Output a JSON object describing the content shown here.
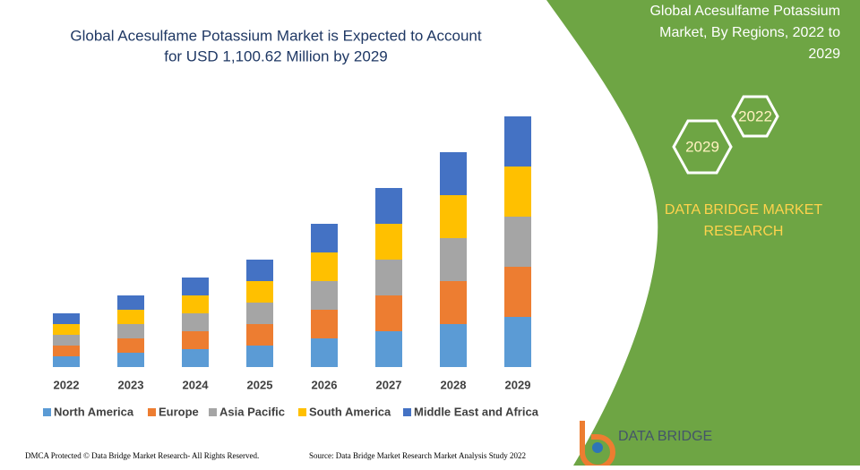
{
  "chart_data": {
    "type": "bar",
    "stacked": true,
    "title": [
      "Global Acesulfame Potassium Market is Expected to Account",
      "for USD 1,100.62 Million by 2029"
    ],
    "categories": [
      "2022",
      "2023",
      "2024",
      "2025",
      "2026",
      "2027",
      "2028",
      "2029"
    ],
    "series": [
      {
        "name": "North America",
        "color": "#5b9bd5",
        "values": [
          12,
          16,
          20,
          24,
          32,
          40,
          48,
          56
        ]
      },
      {
        "name": "Europe",
        "color": "#ed7d31",
        "values": [
          12,
          16,
          20,
          24,
          32,
          40,
          48,
          56
        ]
      },
      {
        "name": "Asia Pacific",
        "color": "#a5a5a5",
        "values": [
          12,
          16,
          20,
          24,
          32,
          40,
          48,
          56
        ]
      },
      {
        "name": "South America",
        "color": "#ffc000",
        "values": [
          12,
          16,
          20,
          24,
          32,
          40,
          48,
          56
        ]
      },
      {
        "name": "Middle East and Africa",
        "color": "#4472c4",
        "values": [
          12,
          16,
          20,
          24,
          32,
          40,
          48,
          56
        ]
      }
    ]
  },
  "side_panel": {
    "title": [
      "Global Acesulfame Potassium",
      "Market, By Regions, 2022 to",
      "2029"
    ],
    "hexagons": [
      "2022",
      "2029"
    ],
    "brand": [
      "DATA BRIDGE MARKET",
      "RESEARCH"
    ]
  },
  "logo": "DATA BRIDGE",
  "footer": {
    "notice": "DMCA Protected © Data Bridge Market Research- All Rights Reserved.",
    "source": "Source: Data Bridge Market Research Market Analysis Study 2022"
  }
}
